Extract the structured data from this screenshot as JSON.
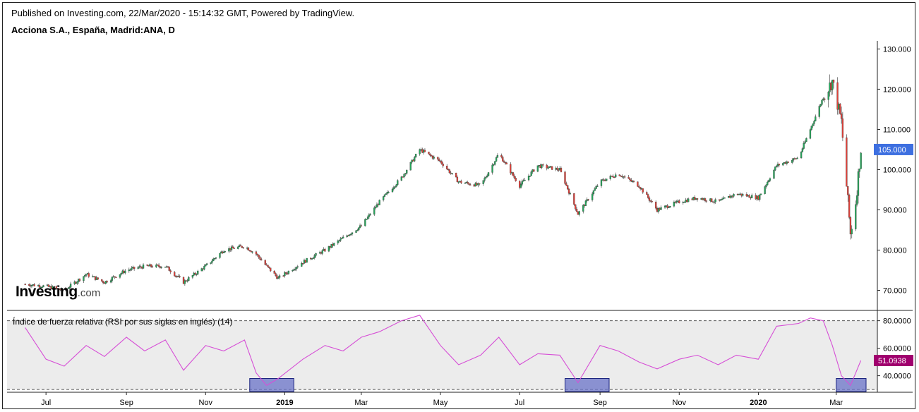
{
  "header": {
    "published": "Published on Investing.com, 22/Mar/2020 - 15:14:32 GMT, Powered by TradingView.",
    "symbol": "Acciona S.A., España, Madrid:ANA, D"
  },
  "logo": {
    "brand": "Investing",
    "suffix": ".com"
  },
  "rsi_panel": {
    "title": "Índice de fuerza relativa (RSI por sus siglas en inglés) (14)"
  },
  "colors": {
    "up": "#26a65b",
    "down": "#e0413a",
    "rsi_line": "#d64fd6",
    "last_price_badge": "#3d6fe0",
    "rsi_badge": "#a0006e",
    "highlight_box": "#6a73c8"
  },
  "chart_data": [
    {
      "type": "line",
      "subtype": "candlestick",
      "title": "Acciona S.A., España, Madrid:ANA, D",
      "x": [
        "2018-06-15",
        "2018-07-01",
        "2018-07-15",
        "2018-08-01",
        "2018-08-15",
        "2018-09-01",
        "2018-09-15",
        "2018-10-01",
        "2018-10-15",
        "2018-11-01",
        "2018-11-15",
        "2018-12-01",
        "2018-12-10",
        "2018-12-18",
        "2018-12-27",
        "2019-01-15",
        "2019-02-01",
        "2019-02-15",
        "2019-03-01",
        "2019-03-15",
        "2019-04-01",
        "2019-04-15",
        "2019-05-01",
        "2019-05-15",
        "2019-06-01",
        "2019-06-15",
        "2019-07-01",
        "2019-07-15",
        "2019-08-01",
        "2019-08-15",
        "2019-09-01",
        "2019-09-15",
        "2019-10-01",
        "2019-10-15",
        "2019-11-01",
        "2019-11-15",
        "2019-12-01",
        "2019-12-15",
        "2020-01-01",
        "2020-01-15",
        "2020-02-01",
        "2020-02-10",
        "2020-02-20",
        "2020-02-27",
        "2020-03-05",
        "2020-03-12",
        "2020-03-16",
        "2020-03-20"
      ],
      "series": [
        {
          "values": [
            71.5,
            71,
            70,
            74,
            72,
            75,
            76,
            76,
            72,
            76,
            80,
            81,
            79,
            76,
            73,
            77,
            80,
            83,
            86,
            92,
            98,
            105,
            102,
            97,
            96,
            104,
            96,
            101,
            100,
            89,
            97,
            99,
            96,
            90,
            92,
            93,
            92,
            94,
            93,
            101,
            103,
            110,
            118,
            122,
            112,
            84,
            92,
            105
          ]
        }
      ],
      "ylim": [
        65,
        132
      ],
      "y_ticks": [
        70,
        80,
        90,
        100,
        110,
        120,
        130
      ],
      "x_ticks": [
        "Jul",
        "Sep",
        "Nov",
        "2019",
        "Mar",
        "May",
        "Jul",
        "Sep",
        "Nov",
        "2020",
        "Mar"
      ],
      "last_value": "105.000",
      "grid": false
    },
    {
      "type": "line",
      "title": "Índice de fuerza relativa (RSI por sus siglas en inglés) (14)",
      "x": [
        "2018-06-15",
        "2018-07-01",
        "2018-07-15",
        "2018-08-01",
        "2018-08-15",
        "2018-09-01",
        "2018-09-15",
        "2018-10-01",
        "2018-10-15",
        "2018-11-01",
        "2018-11-15",
        "2018-12-01",
        "2018-12-10",
        "2018-12-18",
        "2018-12-27",
        "2019-01-15",
        "2019-02-01",
        "2019-02-15",
        "2019-03-01",
        "2019-03-15",
        "2019-04-01",
        "2019-04-15",
        "2019-05-01",
        "2019-05-15",
        "2019-06-01",
        "2019-06-15",
        "2019-07-01",
        "2019-07-15",
        "2019-08-01",
        "2019-08-15",
        "2019-09-01",
        "2019-09-15",
        "2019-10-01",
        "2019-10-15",
        "2019-11-01",
        "2019-11-15",
        "2019-12-01",
        "2019-12-15",
        "2020-01-01",
        "2020-01-15",
        "2020-02-01",
        "2020-02-10",
        "2020-02-20",
        "2020-02-27",
        "2020-03-05",
        "2020-03-12",
        "2020-03-16",
        "2020-03-20"
      ],
      "series": [
        {
          "values": [
            75,
            52,
            47,
            62,
            54,
            68,
            58,
            66,
            44,
            62,
            58,
            66,
            42,
            33,
            38,
            52,
            62,
            58,
            68,
            72,
            80,
            84,
            62,
            48,
            55,
            68,
            48,
            56,
            55,
            35,
            62,
            58,
            50,
            45,
            52,
            55,
            48,
            55,
            52,
            76,
            78,
            82,
            80,
            62,
            40,
            33,
            42,
            51.09
          ]
        }
      ],
      "ylim": [
        28,
        87
      ],
      "y_ticks": [
        40,
        60,
        80
      ],
      "y_tick_labels": [
        "40.0000",
        "60.0000",
        "80.0000"
      ],
      "bands": [
        30,
        80
      ],
      "last_value": "51.0938",
      "highlight_ranges": [
        [
          "2018-12-05",
          "2019-01-08"
        ],
        [
          "2019-08-05",
          "2019-09-08"
        ],
        [
          "2020-03-01",
          "2020-03-24"
        ]
      ]
    }
  ]
}
